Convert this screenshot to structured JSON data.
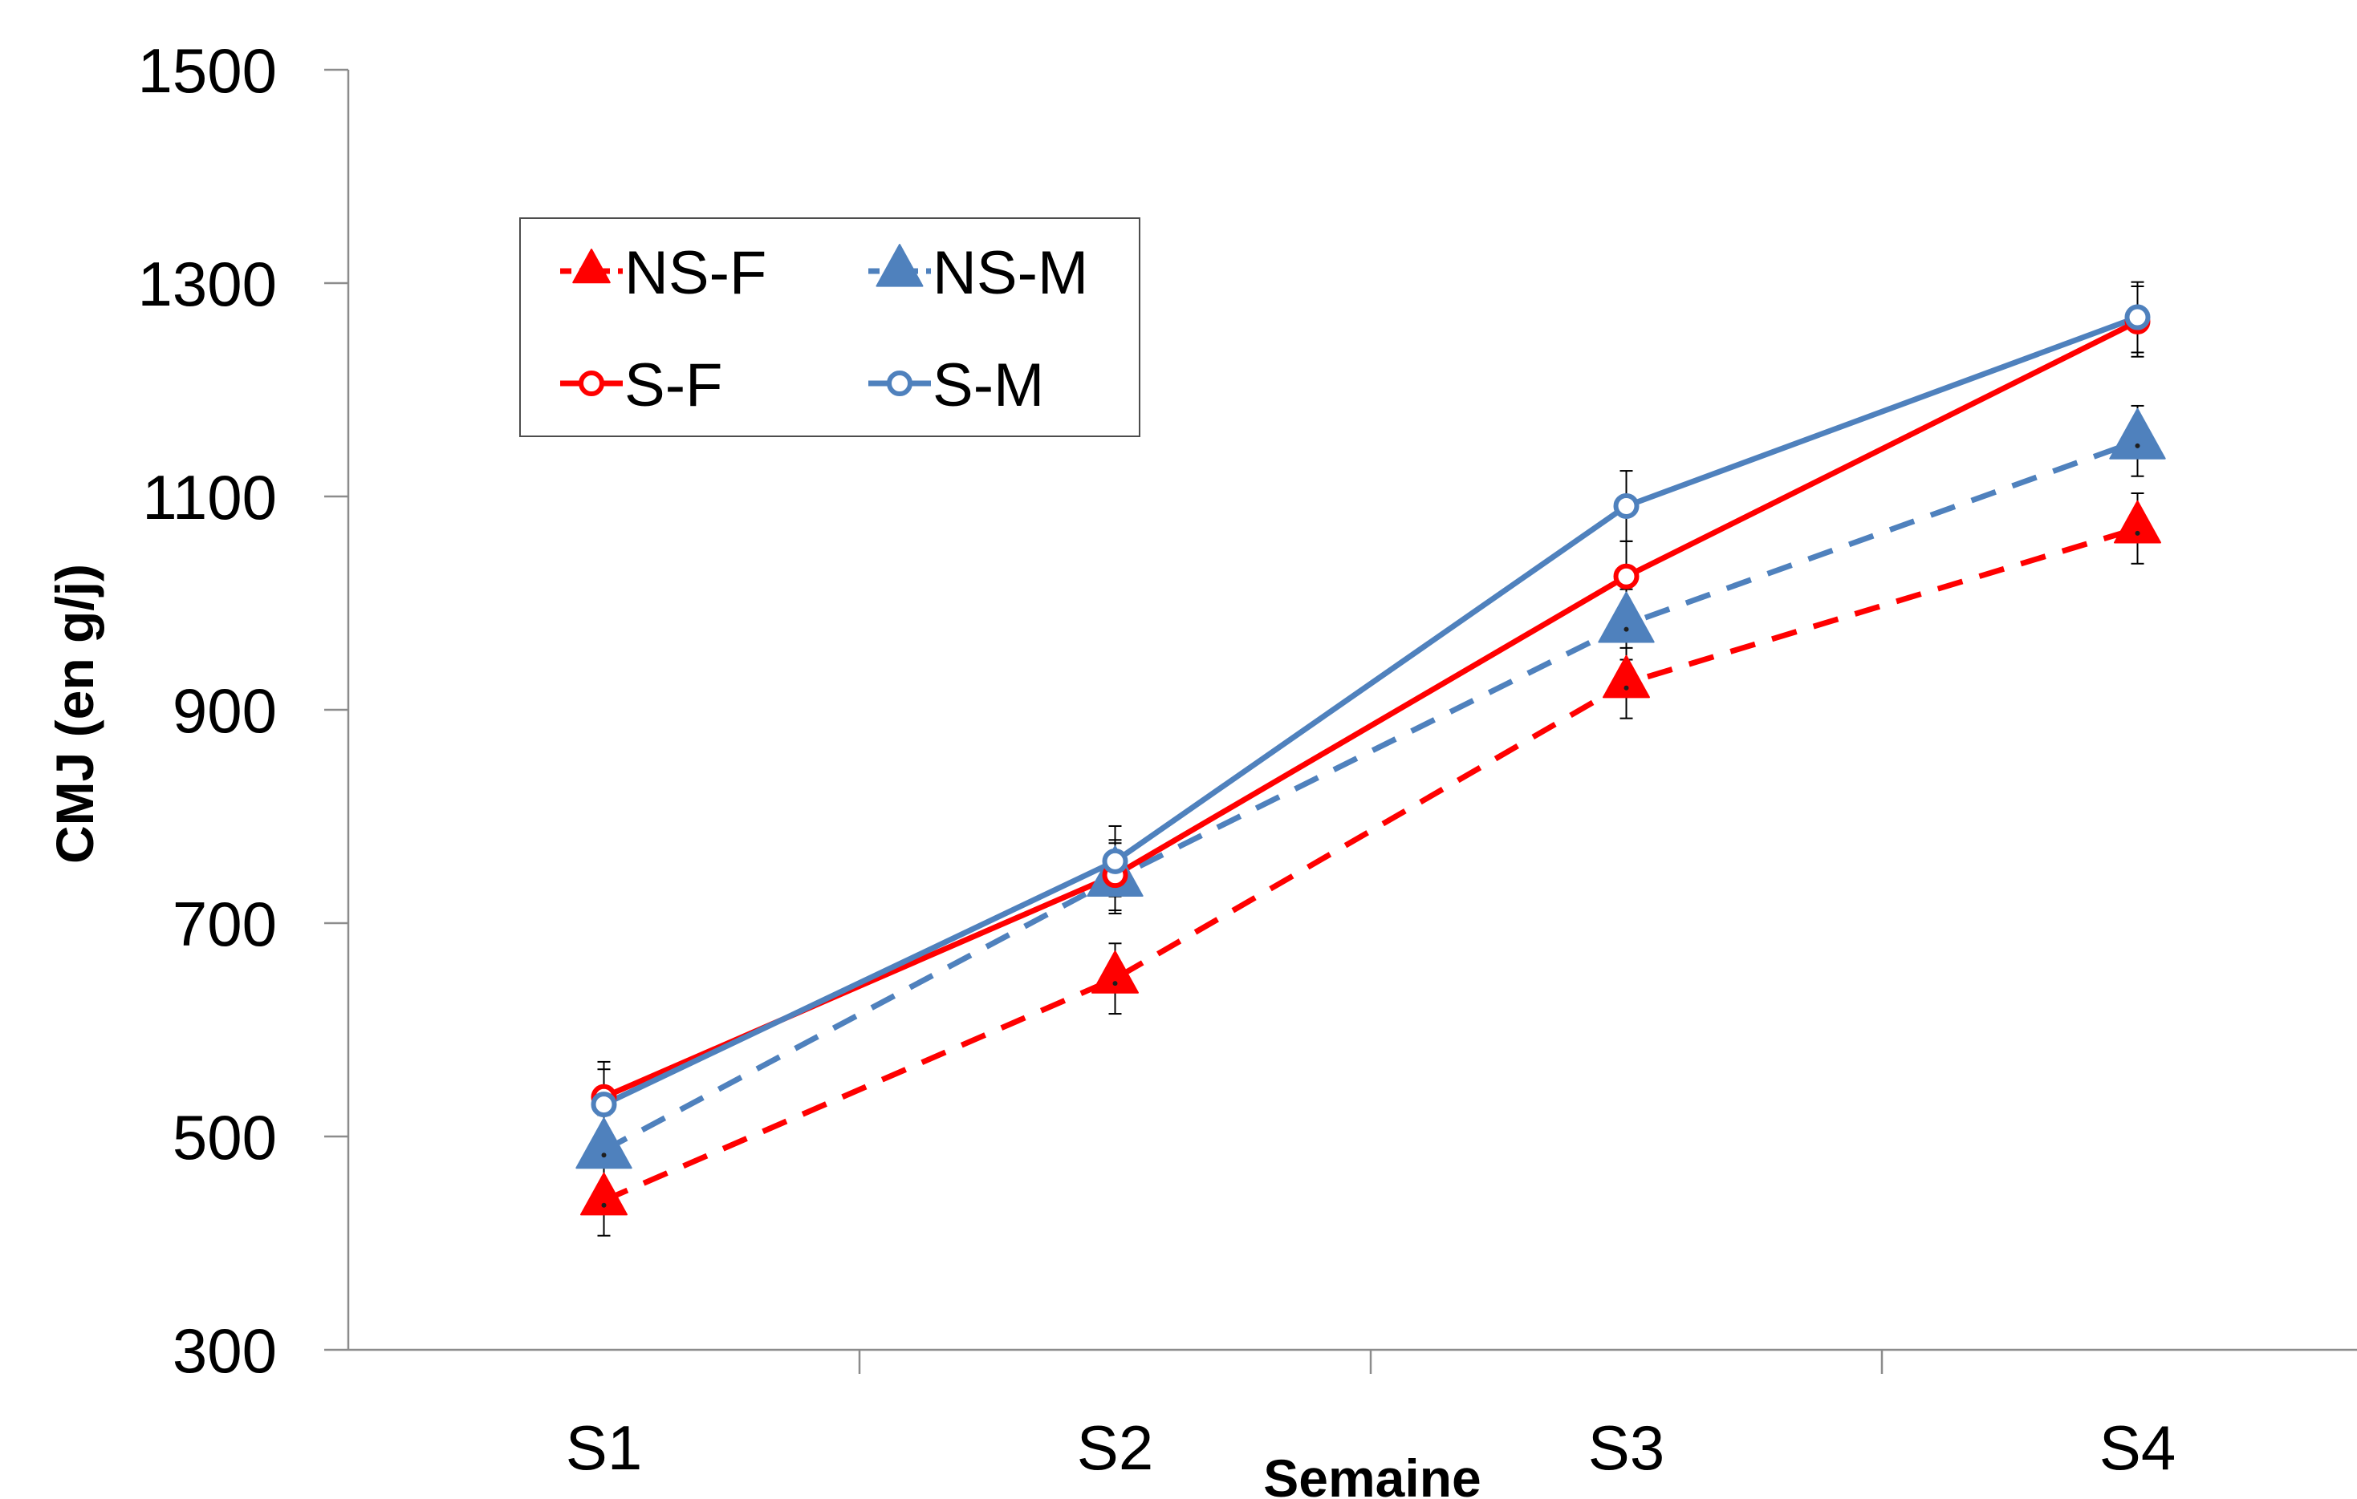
{
  "chart_data": {
    "type": "line",
    "title": "",
    "xlabel": "Semaine",
    "ylabel": "CMJ (en g/j)",
    "categories": [
      "S1",
      "S2",
      "S3",
      "S4"
    ],
    "ylim": [
      300,
      1500
    ],
    "yticks": [
      300,
      500,
      700,
      900,
      1100,
      1300,
      1500
    ],
    "grid": false,
    "legend_position": "top-left",
    "series": [
      {
        "name": "NS-F",
        "values": [
          440,
          648,
          925,
          1070
        ],
        "errors": [
          33,
          33,
          33,
          33
        ],
        "color": "#ff0000",
        "dashed": true,
        "marker": "triangle"
      },
      {
        "name": "NS-M",
        "values": [
          487,
          742,
          980,
          1152
        ],
        "errors": [
          33,
          33,
          33,
          33
        ],
        "color": "#4f81bd",
        "dashed": true,
        "marker": "triangle"
      },
      {
        "name": "S-F",
        "values": [
          537,
          745,
          1025,
          1264
        ],
        "errors": [
          33,
          33,
          33,
          33
        ],
        "color": "#ff0000",
        "dashed": false,
        "marker": "circle"
      },
      {
        "name": "S-M",
        "values": [
          530,
          758,
          1091,
          1268
        ],
        "errors": [
          33,
          33,
          33,
          33
        ],
        "color": "#4f81bd",
        "dashed": false,
        "marker": "circle"
      }
    ]
  }
}
